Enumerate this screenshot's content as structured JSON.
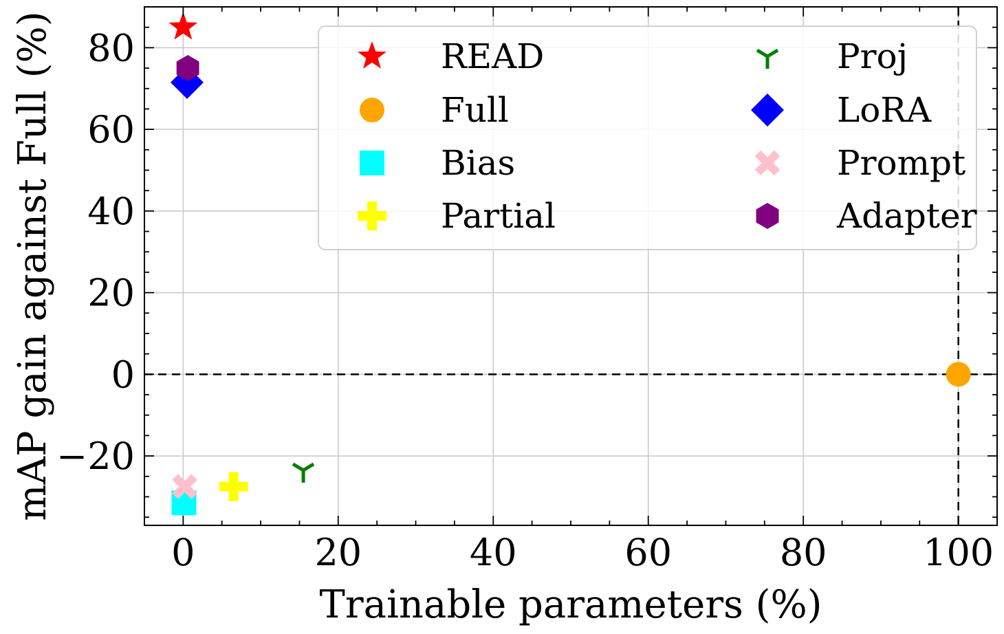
{
  "chart_data": {
    "type": "scatter",
    "xlabel": "Trainable parameters (%)",
    "ylabel": "mAP gain against Full (%)",
    "xlim": [
      -5,
      105
    ],
    "ylim": [
      -37,
      90
    ],
    "xticks": [
      0,
      20,
      40,
      60,
      80,
      100
    ],
    "yticks": [
      -20,
      0,
      20,
      40,
      60,
      80
    ],
    "xtick_labels": [
      "0",
      "20",
      "40",
      "60",
      "80",
      "100"
    ],
    "ytick_labels": [
      "−20",
      "0",
      "20",
      "40",
      "60",
      "80"
    ],
    "grid": true,
    "reference_lines": {
      "x": 100,
      "y": 0,
      "style": "dashed"
    },
    "legend_position": "top-right",
    "series": [
      {
        "name": "READ",
        "marker": "star",
        "color": "#ff0000",
        "x": 0.0,
        "y": 85.0
      },
      {
        "name": "Full",
        "marker": "circle",
        "color": "#ffa500",
        "x": 100.0,
        "y": 0.0
      },
      {
        "name": "Bias",
        "marker": "square",
        "color": "#00ffff",
        "x": 0.1,
        "y": -31.5
      },
      {
        "name": "Partial",
        "marker": "plus",
        "color": "#ffff00",
        "x": 6.5,
        "y": -27.5
      },
      {
        "name": "Proj",
        "marker": "tri",
        "color": "#008000",
        "x": 15.5,
        "y": -23.5
      },
      {
        "name": "LoRA",
        "marker": "diamond",
        "color": "#0000ff",
        "x": 0.5,
        "y": 71.5
      },
      {
        "name": "Prompt",
        "marker": "x",
        "color": "#ffc0cb",
        "x": 0.2,
        "y": -27.5
      },
      {
        "name": "Adapter",
        "marker": "hexagon",
        "color": "#800080",
        "x": 0.6,
        "y": 75.0
      }
    ],
    "plot_order": [
      "READ",
      "Full",
      "Bias",
      "Partial",
      "Proj",
      "LoRA",
      "Adapter",
      "Prompt"
    ]
  }
}
